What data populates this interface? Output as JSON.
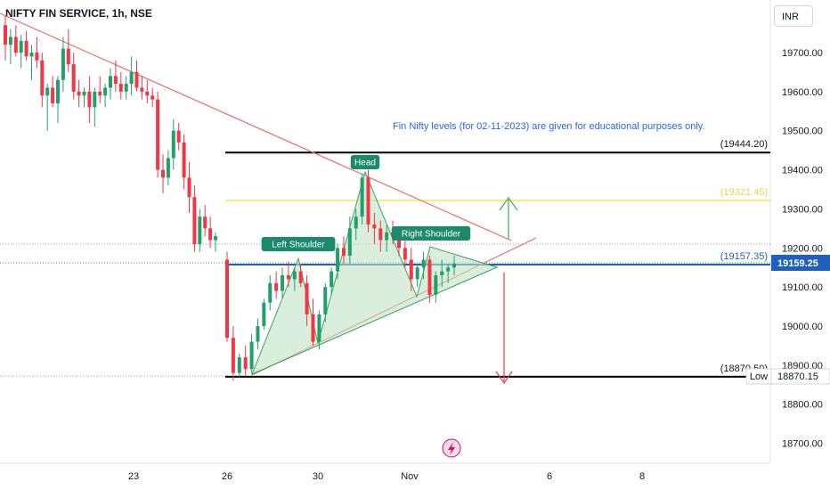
{
  "header": {
    "ticker": "NIFTY FIN SERVICE, 1h, NSE",
    "currency": "INR"
  },
  "colors": {
    "up": "#22a06b",
    "down": "#f23645",
    "trend": "#f06b6b",
    "blue": "#1e5fbf",
    "yellow": "#f2e85a",
    "pattern_fill": "#bfe3c6",
    "pattern_line": "#3da35d"
  },
  "chart_data": {
    "type": "candlestick",
    "y_ticks": [
      "19700.00",
      "19600.00",
      "19500.00",
      "19400.00",
      "19300.00",
      "19200.00",
      "19100.00",
      "19000.00",
      "18900.00",
      "18800.00",
      "18700.00"
    ],
    "x_ticks": [
      "23",
      "26",
      "30",
      "Nov",
      "6",
      "8"
    ],
    "ylim": [
      18640,
      19815
    ],
    "note": "Fin Nifty levels (for 02-11-2023) are given for educational purposes only.",
    "levels": [
      {
        "value": 19444.2,
        "label": "(19444.20)",
        "color": "#000000"
      },
      {
        "value": 19321.45,
        "label": "(19321.45)",
        "color": "#f2e85a"
      },
      {
        "value": 19157.35,
        "label": "(19157.35)",
        "color": "#1e5fbf"
      },
      {
        "value": 18870.5,
        "label": "(18870.50)",
        "color": "#000000"
      }
    ],
    "price_badge": "19159.25",
    "low_badge": {
      "label": "Low",
      "value": "18870.15"
    },
    "pattern_labels": {
      "left": "Left Shoulder",
      "head": "Head",
      "right": "Right Shoulder"
    },
    "candles": [
      [
        19770,
        19795,
        19680,
        19720
      ],
      [
        19720,
        19760,
        19670,
        19740
      ],
      [
        19740,
        19770,
        19690,
        19700
      ],
      [
        19700,
        19745,
        19660,
        19730
      ],
      [
        19730,
        19755,
        19680,
        19690
      ],
      [
        19690,
        19720,
        19630,
        19700
      ],
      [
        19700,
        19740,
        19660,
        19680
      ],
      [
        19680,
        19700,
        19560,
        19590
      ],
      [
        19590,
        19620,
        19500,
        19610
      ],
      [
        19610,
        19640,
        19560,
        19570
      ],
      [
        19570,
        19640,
        19520,
        19630
      ],
      [
        19630,
        19740,
        19600,
        19710
      ],
      [
        19710,
        19760,
        19650,
        19670
      ],
      [
        19670,
        19700,
        19580,
        19600
      ],
      [
        19600,
        19630,
        19560,
        19590
      ],
      [
        19590,
        19610,
        19560,
        19600
      ],
      [
        19600,
        19640,
        19520,
        19560
      ],
      [
        19560,
        19610,
        19510,
        19600
      ],
      [
        19600,
        19640,
        19570,
        19590
      ],
      [
        19590,
        19620,
        19560,
        19610
      ],
      [
        19610,
        19660,
        19580,
        19640
      ],
      [
        19640,
        19680,
        19600,
        19620
      ],
      [
        19620,
        19650,
        19580,
        19600
      ],
      [
        19600,
        19640,
        19580,
        19620
      ],
      [
        19620,
        19690,
        19590,
        19650
      ],
      [
        19650,
        19680,
        19600,
        19610
      ],
      [
        19610,
        19640,
        19580,
        19600
      ],
      [
        19600,
        19630,
        19570,
        19590
      ],
      [
        19590,
        19610,
        19560,
        19580
      ],
      [
        19580,
        19600,
        19380,
        19400
      ],
      [
        19400,
        19440,
        19340,
        19380
      ],
      [
        19380,
        19450,
        19360,
        19430
      ],
      [
        19430,
        19530,
        19400,
        19500
      ],
      [
        19500,
        19520,
        19450,
        19470
      ],
      [
        19470,
        19490,
        19350,
        19380
      ],
      [
        19380,
        19420,
        19290,
        19330
      ],
      [
        19330,
        19360,
        19190,
        19210
      ],
      [
        19210,
        19300,
        19190,
        19280
      ],
      [
        19280,
        19310,
        19230,
        19250
      ],
      [
        19250,
        19280,
        19200,
        19220
      ],
      [
        19220,
        19240,
        19190,
        19230
      ],
      [
        19170,
        19190,
        18960,
        18970
      ],
      [
        18970,
        19000,
        18860,
        18880
      ],
      [
        18880,
        18930,
        18870,
        18920
      ],
      [
        18920,
        18950,
        18870,
        18890
      ],
      [
        18890,
        18980,
        18880,
        18960
      ],
      [
        18960,
        19020,
        18940,
        19000
      ],
      [
        19000,
        19070,
        18990,
        19060
      ],
      [
        19060,
        19130,
        19040,
        19110
      ],
      [
        19110,
        19140,
        19070,
        19090
      ],
      [
        19090,
        19150,
        19070,
        19130
      ],
      [
        19130,
        19165,
        19100,
        19120
      ],
      [
        19120,
        19150,
        19090,
        19140
      ],
      [
        19140,
        19160,
        19100,
        19110
      ],
      [
        19110,
        19130,
        19000,
        19030
      ],
      [
        19030,
        19070,
        18950,
        18960
      ],
      [
        18960,
        19040,
        18940,
        19030
      ],
      [
        19030,
        19110,
        19010,
        19100
      ],
      [
        19100,
        19150,
        19080,
        19140
      ],
      [
        19140,
        19210,
        19120,
        19200
      ],
      [
        19200,
        19230,
        19160,
        19180
      ],
      [
        19180,
        19280,
        19160,
        19250
      ],
      [
        19250,
        19300,
        19220,
        19280
      ],
      [
        19280,
        19390,
        19260,
        19380
      ],
      [
        19380,
        19400,
        19240,
        19260
      ],
      [
        19260,
        19290,
        19210,
        19250
      ],
      [
        19250,
        19270,
        19190,
        19220
      ],
      [
        19220,
        19260,
        19190,
        19240
      ],
      [
        19240,
        19270,
        19210,
        19230
      ],
      [
        19230,
        19250,
        19180,
        19200
      ],
      [
        19200,
        19230,
        19150,
        19170
      ],
      [
        19170,
        19200,
        19090,
        19120
      ],
      [
        19120,
        19160,
        19100,
        19150
      ],
      [
        19150,
        19190,
        19120,
        19170
      ],
      [
        19170,
        19180,
        19060,
        19080
      ],
      [
        19080,
        19140,
        19060,
        19130
      ],
      [
        19130,
        19170,
        19100,
        19140
      ],
      [
        19140,
        19160,
        19110,
        19150
      ],
      [
        19150,
        19180,
        19130,
        19160
      ]
    ]
  }
}
